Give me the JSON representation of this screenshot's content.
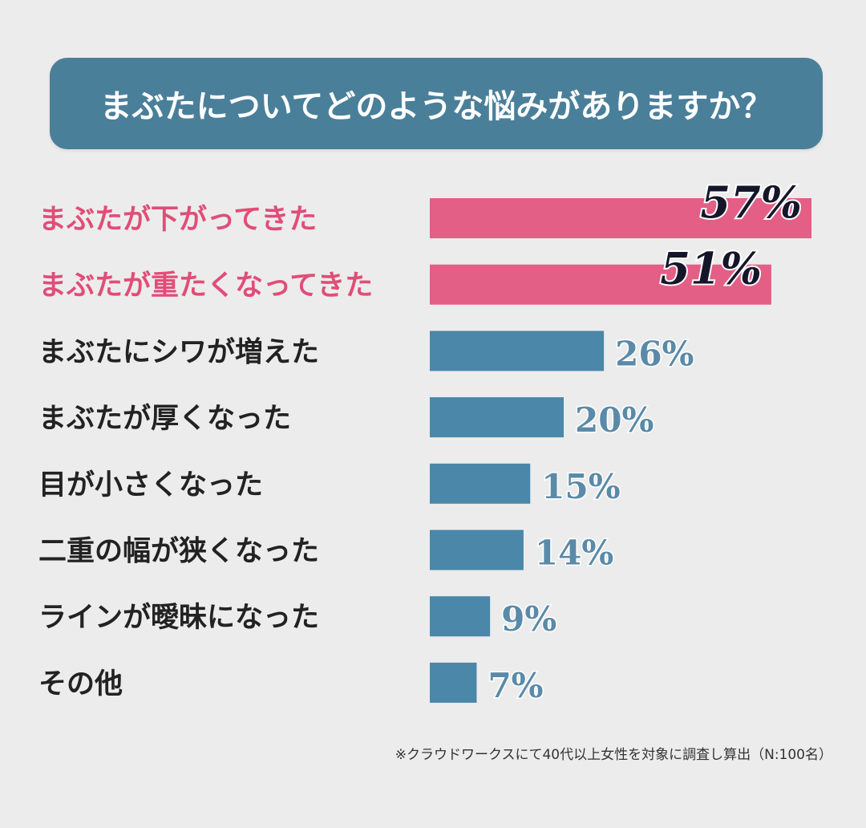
{
  "colors": {
    "background": "#ececed",
    "title_bg": "#4a7f9a",
    "highlight_bar": "#e35f85",
    "normal_bar": "#4a87a8",
    "highlight_text": "#e14d77",
    "normal_text": "#222222",
    "highlight_value": "#16162a",
    "normal_value": "#5a8aa8"
  },
  "chart_data": {
    "type": "bar",
    "orientation": "horizontal",
    "title": "まぶたについてどのような悩みがありますか？",
    "categories": [
      "まぶたが下がってきた",
      "まぶたが重たくなってきた",
      "まぶたにシワが増えた",
      "まぶたが厚くなった",
      "目が小さくなった",
      "二重の幅が狭くなった",
      "ラインが曖昧になった",
      "その他"
    ],
    "values": [
      57,
      51,
      26,
      20,
      15,
      14,
      9,
      7
    ],
    "value_labels": [
      "57%",
      "51%",
      "26%",
      "20%",
      "15%",
      "14%",
      "9%",
      "7%"
    ],
    "highlighted": [
      true,
      true,
      false,
      false,
      false,
      false,
      false,
      false
    ],
    "xlim": [
      0,
      57
    ],
    "grid": false,
    "legend": "none"
  },
  "footnote": "※クラウドワークスにて40代以上女性を対象に調査し算出（N:100名）"
}
